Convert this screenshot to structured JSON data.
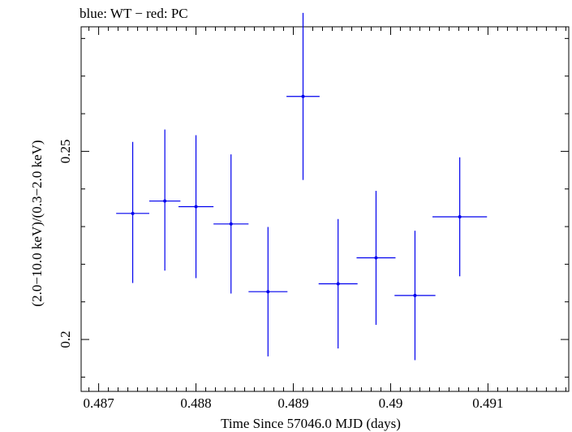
{
  "chart_data": {
    "type": "scatter",
    "title": "blue: WT − red: PC",
    "xlabel": "Time Since 57046.0 MJD (days)",
    "ylabel": "(2.0−10.0 keV)/(0.3−2.0 keV)",
    "xlim": [
      0.48682,
      0.49183
    ],
    "ylim": [
      0.1862,
      0.2831
    ],
    "x_ticks": [
      {
        "value": 0.487,
        "label": "0.487"
      },
      {
        "value": 0.488,
        "label": "0.488"
      },
      {
        "value": 0.489,
        "label": "0.489"
      },
      {
        "value": 0.49,
        "label": "0.49"
      },
      {
        "value": 0.491,
        "label": "0.491"
      }
    ],
    "y_ticks": [
      {
        "value": 0.2,
        "label": "0.2"
      },
      {
        "value": 0.25,
        "label": "0.25"
      }
    ],
    "grid": false,
    "series": [
      {
        "color": "#0000ee",
        "points": [
          {
            "x": 0.48735,
            "y": 0.2335,
            "xerr": 0.00017,
            "yerr_low": 0.0185,
            "yerr_high": 0.019
          },
          {
            "x": 0.48768,
            "y": 0.2368,
            "xerr": 0.00016,
            "yerr_low": 0.0185,
            "yerr_high": 0.019
          },
          {
            "x": 0.488,
            "y": 0.2353,
            "xerr": 0.00018,
            "yerr_low": 0.019,
            "yerr_high": 0.019
          },
          {
            "x": 0.48836,
            "y": 0.2307,
            "xerr": 0.00018,
            "yerr_low": 0.0185,
            "yerr_high": 0.0185
          },
          {
            "x": 0.48874,
            "y": 0.2127,
            "xerr": 0.0002,
            "yerr_low": 0.0172,
            "yerr_high": 0.0172
          },
          {
            "x": 0.4891,
            "y": 0.2646,
            "xerr": 0.00017,
            "yerr_low": 0.0222,
            "yerr_high": 0.0222
          },
          {
            "x": 0.48946,
            "y": 0.2148,
            "xerr": 0.0002,
            "yerr_low": 0.0172,
            "yerr_high": 0.0172
          },
          {
            "x": 0.48985,
            "y": 0.2217,
            "xerr": 0.0002,
            "yerr_low": 0.0178,
            "yerr_high": 0.0178
          },
          {
            "x": 0.49025,
            "y": 0.2117,
            "xerr": 0.00021,
            "yerr_low": 0.0172,
            "yerr_high": 0.0172
          },
          {
            "x": 0.49071,
            "y": 0.2326,
            "xerr": 0.00028,
            "yerr_low": 0.0158,
            "yerr_high": 0.0158
          }
        ]
      }
    ]
  }
}
